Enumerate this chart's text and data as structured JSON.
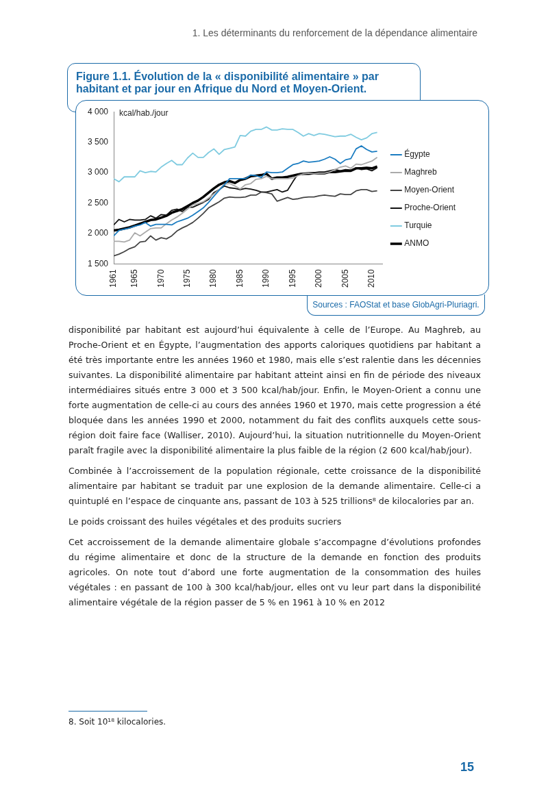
{
  "chart_data": {
    "type": "line",
    "title": "Figure 1.1. Évolution de la « disponibilité alimentaire » par habitant et par jour en Afrique du Nord et Moyen-Orient.",
    "ylabel": "kcal/hab./jour",
    "x": [
      1961,
      1962,
      1963,
      1964,
      1965,
      1966,
      1967,
      1968,
      1969,
      1970,
      1971,
      1972,
      1973,
      1974,
      1975,
      1976,
      1977,
      1978,
      1979,
      1980,
      1981,
      1982,
      1983,
      1984,
      1985,
      1986,
      1987,
      1988,
      1989,
      1990,
      1991,
      1992,
      1993,
      1994,
      1995,
      1996,
      1997,
      1998,
      1999,
      2000,
      2001,
      2002,
      2003,
      2004,
      2005,
      2006,
      2007,
      2008,
      2009,
      2010,
      2011
    ],
    "series": [
      {
        "name": "Égypte",
        "color": "#1a7cc1",
        "values": [
          1960,
          2050,
          2070,
          2090,
          2120,
          2140,
          2180,
          2120,
          2150,
          2150,
          2150,
          2140,
          2190,
          2220,
          2250,
          2300,
          2360,
          2420,
          2510,
          2610,
          2710,
          2800,
          2900,
          2900,
          2900,
          2900,
          2960,
          2950,
          2920,
          3010,
          3000,
          3000,
          3010,
          3070,
          3130,
          3150,
          3190,
          3170,
          3180,
          3190,
          3220,
          3260,
          3220,
          3150,
          3210,
          3230,
          3390,
          3440,
          3380,
          3340,
          3350
        ]
      },
      {
        "name": "Maghreb",
        "color": "#aaaaaa",
        "values": [
          1870,
          1870,
          1860,
          1890,
          2010,
          1960,
          2020,
          2080,
          2090,
          2090,
          2160,
          2220,
          2270,
          2330,
          2400,
          2470,
          2490,
          2520,
          2580,
          2650,
          2720,
          2810,
          2820,
          2780,
          2730,
          2800,
          2820,
          2890,
          2900,
          2940,
          2900,
          2900,
          2900,
          2900,
          2910,
          2950,
          2980,
          2990,
          2980,
          2990,
          2990,
          3010,
          3050,
          3090,
          3110,
          3070,
          3140,
          3130,
          3160,
          3190,
          3250
        ]
      },
      {
        "name": "Moyen-Orient",
        "color": "#444444",
        "values": [
          1630,
          1660,
          1700,
          1750,
          1780,
          1860,
          1870,
          1960,
          1890,
          1930,
          1910,
          1960,
          2040,
          2090,
          2130,
          2180,
          2250,
          2330,
          2420,
          2470,
          2520,
          2580,
          2600,
          2590,
          2590,
          2600,
          2630,
          2630,
          2680,
          2670,
          2650,
          2530,
          2560,
          2590,
          2560,
          2570,
          2590,
          2600,
          2600,
          2620,
          2630,
          2620,
          2610,
          2650,
          2640,
          2640,
          2700,
          2720,
          2720,
          2690,
          2700
        ]
      },
      {
        "name": "Proche-Orient",
        "color": "#111111",
        "values": [
          2140,
          2230,
          2190,
          2230,
          2220,
          2220,
          2230,
          2290,
          2250,
          2310,
          2300,
          2380,
          2400,
          2360,
          2430,
          2430,
          2470,
          2510,
          2560,
          2670,
          2720,
          2780,
          2750,
          2740,
          2720,
          2740,
          2730,
          2710,
          2680,
          2680,
          2700,
          2720,
          2680,
          2710,
          2850,
          2980,
          2990,
          3000,
          3000,
          3010,
          3010,
          3030,
          3050,
          3030,
          3050,
          3040,
          3080,
          3050,
          3060,
          3030,
          3080
        ]
      },
      {
        "name": "Turquie",
        "color": "#7fcbe0",
        "values": [
          2900,
          2850,
          2930,
          2930,
          2930,
          3030,
          3000,
          3020,
          3010,
          3090,
          3150,
          3200,
          3130,
          3130,
          3240,
          3320,
          3250,
          3250,
          3330,
          3390,
          3300,
          3380,
          3400,
          3420,
          3610,
          3600,
          3680,
          3710,
          3710,
          3750,
          3700,
          3700,
          3720,
          3710,
          3710,
          3660,
          3600,
          3640,
          3610,
          3640,
          3630,
          3610,
          3590,
          3600,
          3600,
          3630,
          3580,
          3540,
          3570,
          3640,
          3660
        ]
      },
      {
        "name": "ANMO",
        "color": "#000000",
        "values": [
          2050,
          2060,
          2080,
          2100,
          2130,
          2160,
          2190,
          2220,
          2230,
          2260,
          2290,
          2340,
          2370,
          2400,
          2450,
          2500,
          2540,
          2600,
          2670,
          2740,
          2800,
          2840,
          2860,
          2830,
          2880,
          2900,
          2940,
          2950,
          2960,
          2980,
          2900,
          2920,
          2920,
          2930,
          2950,
          2970,
          2980,
          2980,
          2990,
          2990,
          2990,
          3010,
          3010,
          3020,
          3030,
          3030,
          3070,
          3070,
          3080,
          3070,
          3100
        ]
      }
    ],
    "xlim": [
      1961,
      2012
    ],
    "xticks": [
      1961,
      1965,
      1970,
      1975,
      1980,
      1985,
      1990,
      1995,
      2000,
      2005,
      2010
    ],
    "ylim": [
      1500,
      4000
    ],
    "yticks": [
      {
        "value": 1500,
        "label": "1 500"
      },
      {
        "value": 2000,
        "label": "2 000"
      },
      {
        "value": 2500,
        "label": "2 500"
      },
      {
        "value": 3000,
        "label": "3 000"
      },
      {
        "value": 3500,
        "label": "3 500"
      },
      {
        "value": 4000,
        "label": "4 000"
      }
    ],
    "grid": false,
    "legend": "right",
    "marker": "none",
    "line_style": "solid",
    "annotations": [
      "1. Les déterminants du renforcement de la dépendance alimentaire",
      "Sources : FAOStat et base GlobAgri-Pluriagri.",
      "disponibilité par habitant est aujourd’hui équivalente à celle de l’Europe. Au Maghreb, au Proche-Orient et en Égypte, l’augmentation des apports caloriques quotidiens par habitant a été très importante entre les années 1960 et 1980, mais elle s’est ralentie dans les décennies suivantes. La disponibilité alimentaire par habitant atteint ainsi en fin de période des niveaux intermédiaires situés entre 3 000 et 3 500 kcal/hab/jour. Enfin, le Moyen-Orient a connu une forte augmentation de celle-ci au cours des années 1960 et 1970, mais cette progression a été bloquée dans les années 1990 et 2000, notamment du fait des conflits auxquels cette sous-région doit faire face (Walliser, 2010). Aujourd’hui, la situation nutritionnelle du Moyen-Orient paraît fragile avec la disponibilité alimentaire la plus faible de la région (2 600 kcal/hab/jour).",
      "Combinée à l’accroissement de la population régionale, cette croissance de la disponibilité alimentaire par habitant se traduit par une explosion de la demande alimentaire. Celle-ci a quintuplé en l’espace de cinquante ans, passant de 103 à 525 trillions⁸ de kilocalories par an.",
      "Le poids croissant des huiles végétales et des produits sucriers",
      "Cet accroissement de la demande alimentaire globale s’accompagne d’évolutions profondes du régime alimentaire et donc de la structure de la demande en fonction des produits agricoles. On note tout d’abord une forte augmentation de la consommation des huiles végétales : en passant de 100 à 300 kcal/hab/jour, elles ont vu leur part dans la disponibilité alimentaire végétale de la région passer de 5 % en 1961 à 10 % en 2012",
      "8.  Soit 10¹⁸ kilocalories.",
      "15"
    ]
  }
}
